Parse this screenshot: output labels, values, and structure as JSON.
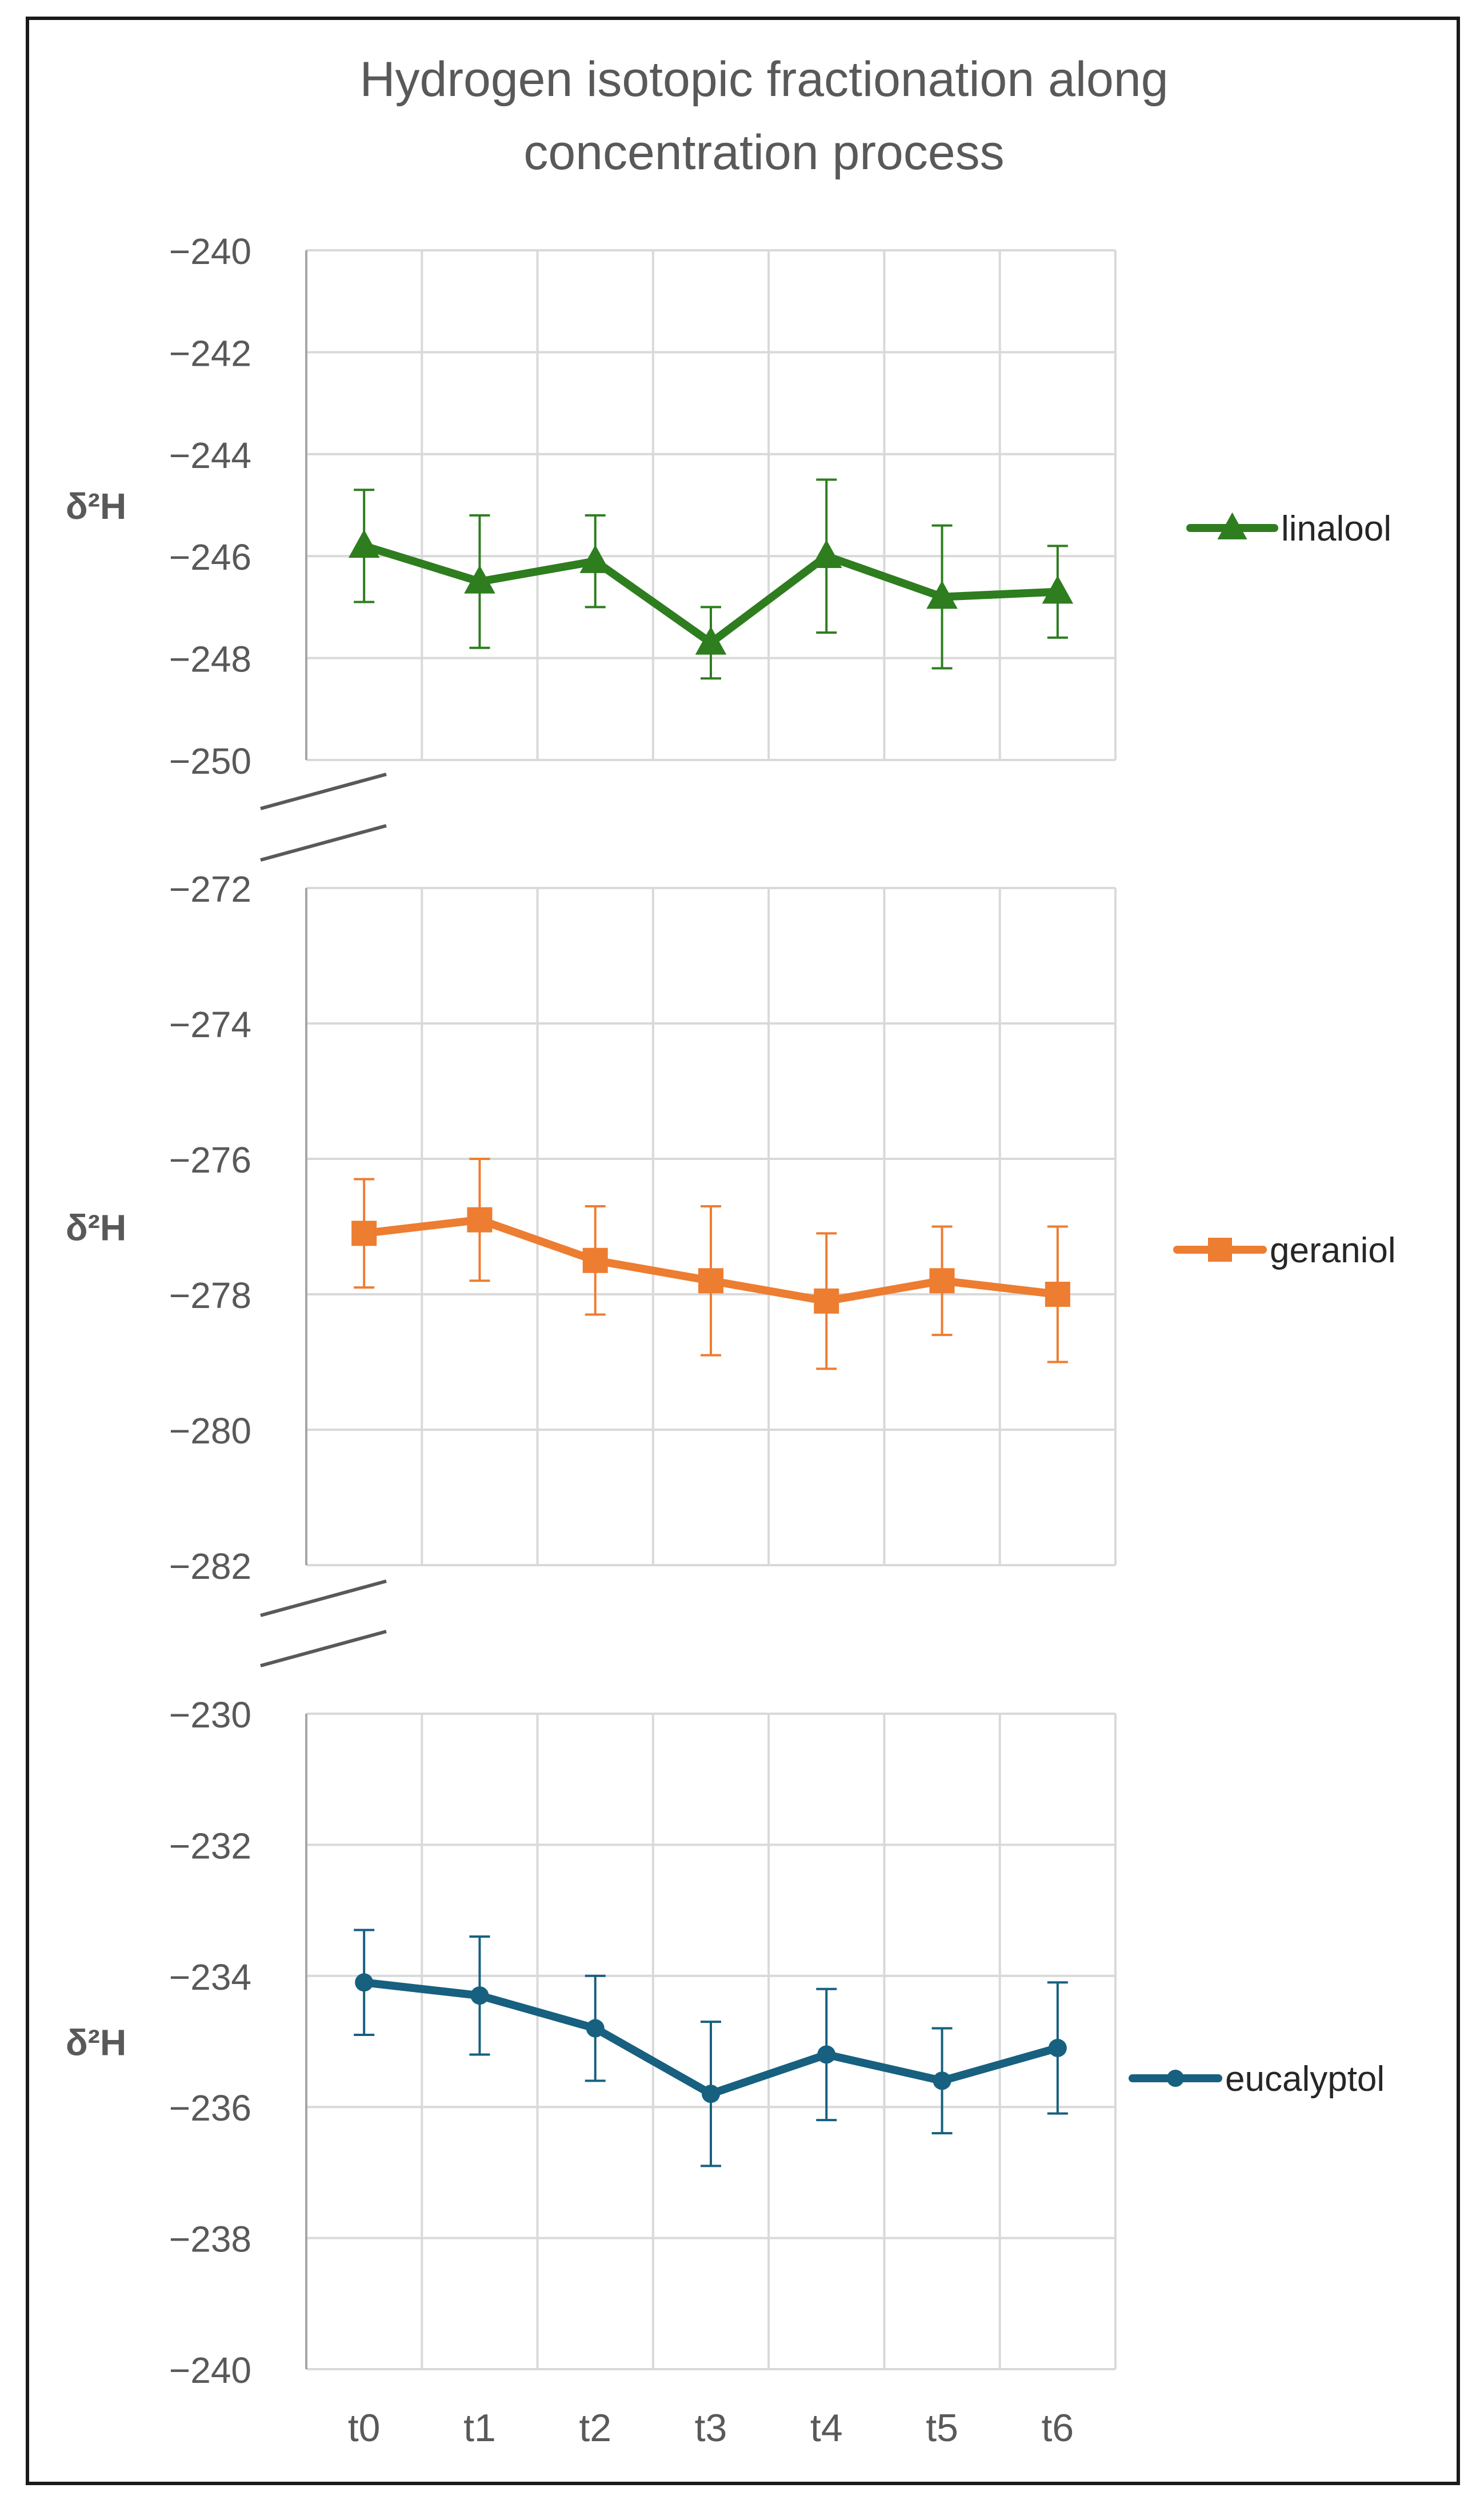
{
  "chart_data": {
    "type": "line",
    "title_lines": [
      "Hydrogen isotopic fractionation along",
      "concentration process"
    ],
    "categories": [
      "t0",
      "t1",
      "t2",
      "t3",
      "t4",
      "t5",
      "t6"
    ],
    "grid": true,
    "panels": [
      {
        "name": "linalool",
        "color": "#2e7d1f",
        "marker": "triangle",
        "ylabel": "δ²H",
        "ylim": [
          -250,
          -240
        ],
        "yticks": [
          "−240",
          "−242",
          "−244",
          "−246",
          "−248",
          "−250"
        ],
        "ytick_values": [
          -240,
          -242,
          -244,
          -246,
          -248,
          -250
        ],
        "values": [
          -245.8,
          -246.5,
          -246.1,
          -247.7,
          -246.0,
          -246.8,
          -246.7
        ],
        "errors": [
          1.1,
          1.3,
          0.9,
          0.7,
          1.5,
          1.4,
          0.9
        ]
      },
      {
        "name": "geraniol",
        "color": "#ed7d31",
        "marker": "square",
        "ylabel": "δ²H",
        "ylim": [
          -282,
          -272
        ],
        "yticks": [
          "−272",
          "−274",
          "−276",
          "−278",
          "−280",
          "−282"
        ],
        "ytick_values": [
          -272,
          -274,
          -276,
          -278,
          -280,
          -282
        ],
        "values": [
          -277.1,
          -276.9,
          -277.5,
          -277.8,
          -278.1,
          -277.8,
          -278.0
        ],
        "errors": [
          0.8,
          0.9,
          0.8,
          1.1,
          1.0,
          0.8,
          1.0
        ]
      },
      {
        "name": "eucalyptol",
        "color": "#17607f",
        "marker": "circle",
        "ylabel": "δ²H",
        "ylim": [
          -240,
          -230
        ],
        "yticks": [
          "−230",
          "−232",
          "−234",
          "−236",
          "−238",
          "−240"
        ],
        "ytick_values": [
          -230,
          -232,
          -234,
          -236,
          -238,
          -240
        ],
        "values": [
          -234.1,
          -234.3,
          -234.8,
          -235.8,
          -235.2,
          -235.6,
          -235.1
        ],
        "errors": [
          0.8,
          0.9,
          0.8,
          1.1,
          1.0,
          0.8,
          1.0
        ]
      }
    ]
  }
}
